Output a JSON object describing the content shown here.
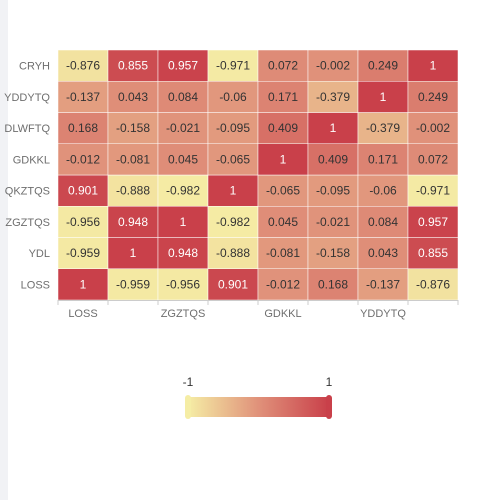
{
  "colors": {
    "low": "#f5eda5",
    "mid": "#e0917a",
    "high": "#c9404a",
    "grid_line": "#e6e6e6",
    "axis_line": "#cccccc",
    "panel_bg": "#f1f2f5"
  },
  "chart_data": {
    "type": "heatmap",
    "x_categories": [
      "LOSS",
      "YDL",
      "ZGZTQS",
      "QKZTQS",
      "GDKKL",
      "DLWFTQ",
      "YDDYTQ",
      "CRYH"
    ],
    "x_tick_labels_shown": [
      "LOSS",
      "",
      "ZGZTQS",
      "",
      "GDKKL",
      "",
      "YDDYTQ",
      ""
    ],
    "y_categories": [
      "LOSS",
      "YDL",
      "ZGZTQS",
      "QKZTQS",
      "GDKKL",
      "DLWFTQ",
      "YDDYTQ",
      "CRYH"
    ],
    "y_tick_labels_shown": [
      "LOSS",
      "YDL",
      "ZGZTQS",
      "QKZTQS",
      "GDKKL",
      "DLWFTQ",
      "YDDYTQ",
      "CRYH"
    ],
    "values": [
      [
        1,
        -0.959,
        -0.956,
        0.901,
        -0.012,
        0.168,
        -0.137,
        -0.876
      ],
      [
        -0.959,
        1,
        0.948,
        -0.888,
        -0.081,
        -0.158,
        0.043,
        0.855
      ],
      [
        -0.956,
        0.948,
        1,
        -0.982,
        0.045,
        -0.021,
        0.084,
        0.957
      ],
      [
        0.901,
        -0.888,
        -0.982,
        1,
        -0.065,
        -0.095,
        -0.06,
        -0.971
      ],
      [
        -0.012,
        -0.081,
        0.045,
        -0.065,
        1,
        0.409,
        0.171,
        0.072
      ],
      [
        0.168,
        -0.158,
        -0.021,
        -0.095,
        0.409,
        1,
        -0.379,
        -0.002
      ],
      [
        -0.137,
        0.043,
        0.084,
        -0.06,
        0.171,
        -0.379,
        1,
        0.249
      ],
      [
        -0.876,
        0.855,
        0.957,
        -0.971,
        0.072,
        -0.002,
        0.249,
        1
      ]
    ],
    "value_labels": [
      [
        "1",
        "-0.959",
        "-0.956",
        "0.901",
        "-0.012",
        "0.168",
        "-0.137",
        "-0.876"
      ],
      [
        "-0.959",
        "1",
        "0.948",
        "-0.888",
        "-0.081",
        "-0.158",
        "0.043",
        "0.855"
      ],
      [
        "-0.956",
        "0.948",
        "1",
        "-0.982",
        "0.045",
        "-0.021",
        "0.084",
        "0.957"
      ],
      [
        "0.901",
        "-0.888",
        "-0.982",
        "1",
        "-0.065",
        "-0.095",
        "-0.06",
        "-0.971"
      ],
      [
        "-0.012",
        "-0.081",
        "0.045",
        "-0.065",
        "1",
        "0.409",
        "0.171",
        "0.072"
      ],
      [
        "0.168",
        "-0.158",
        "-0.021",
        "-0.095",
        "0.409",
        "1",
        "-0.379",
        "-0.002"
      ],
      [
        "-0.137",
        "0.043",
        "0.084",
        "-0.06",
        "0.171",
        "-0.379",
        "1",
        "0.249"
      ],
      [
        "-0.876",
        "0.855",
        "0.957",
        "-0.971",
        "0.072",
        "-0.002",
        "0.249",
        "1"
      ]
    ],
    "visual_map": {
      "min": -1,
      "max": 1,
      "min_label": "-1",
      "max_label": "1"
    }
  }
}
